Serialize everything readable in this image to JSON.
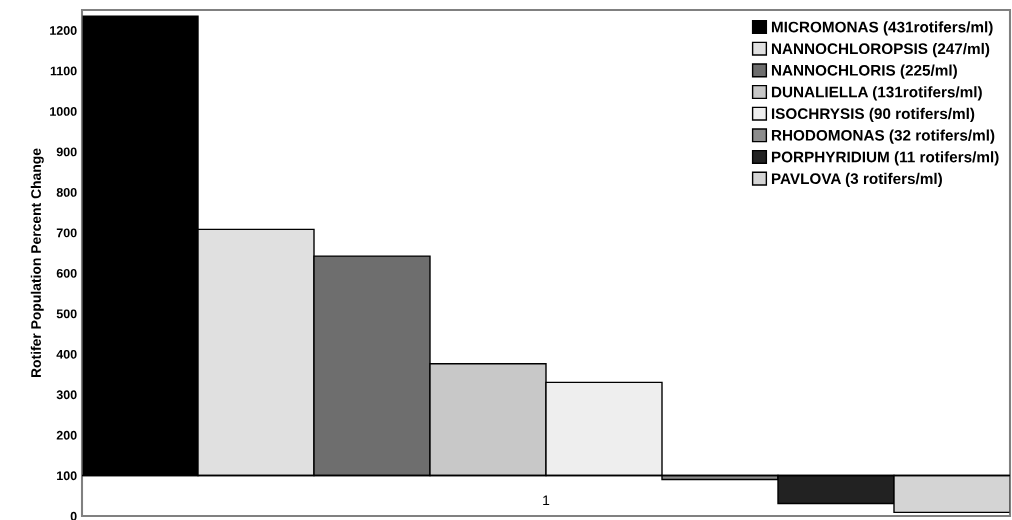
{
  "chart_data": {
    "type": "bar",
    "ylabel": "Rotifer Population Percent Change",
    "categories": [
      "1"
    ],
    "series": [
      {
        "name": "MICROMONAS (431rotifers/ml)",
        "color": "#000000",
        "values": [
          1135
        ],
        "base": [
          100
        ]
      },
      {
        "name": "NANNOCHLOROPSIS (247/ml)",
        "color": "#e0e0e0",
        "values": [
          608
        ],
        "base": [
          100
        ]
      },
      {
        "name": "NANNOCHLORIS (225/ml)",
        "color": "#6e6e6e",
        "values": [
          542
        ],
        "base": [
          100
        ]
      },
      {
        "name": "DUNALIELLA (131rotifers/ml)",
        "color": "#c8c8c8",
        "values": [
          276
        ],
        "base": [
          100
        ]
      },
      {
        "name": "ISOCHRYSIS (90 rotifers/ml)",
        "color": "#eeeeee",
        "values": [
          230
        ],
        "base": [
          100
        ]
      },
      {
        "name": "RHODOMONAS (32 rotifers/ml)",
        "color": "#8c8c8c",
        "values": [
          -10
        ],
        "base": [
          100
        ]
      },
      {
        "name": "PORPHYRIDIUM (11 rotifers/ml)",
        "color": "#222222",
        "values": [
          -69
        ],
        "base": [
          100
        ]
      },
      {
        "name": "PAVLOVA (3 rotifers/ml)",
        "color": "#d4d4d4",
        "values": [
          -91
        ],
        "base": [
          100
        ]
      }
    ],
    "ylim": [
      0,
      1250
    ],
    "yticks": [
      0,
      100,
      200,
      300,
      400,
      500,
      600,
      700,
      800,
      900,
      1000,
      1100,
      1200
    ],
    "ref_lines": [
      {
        "axis": "y",
        "value": 100,
        "color": "#000000"
      }
    ],
    "legend": "top right"
  }
}
